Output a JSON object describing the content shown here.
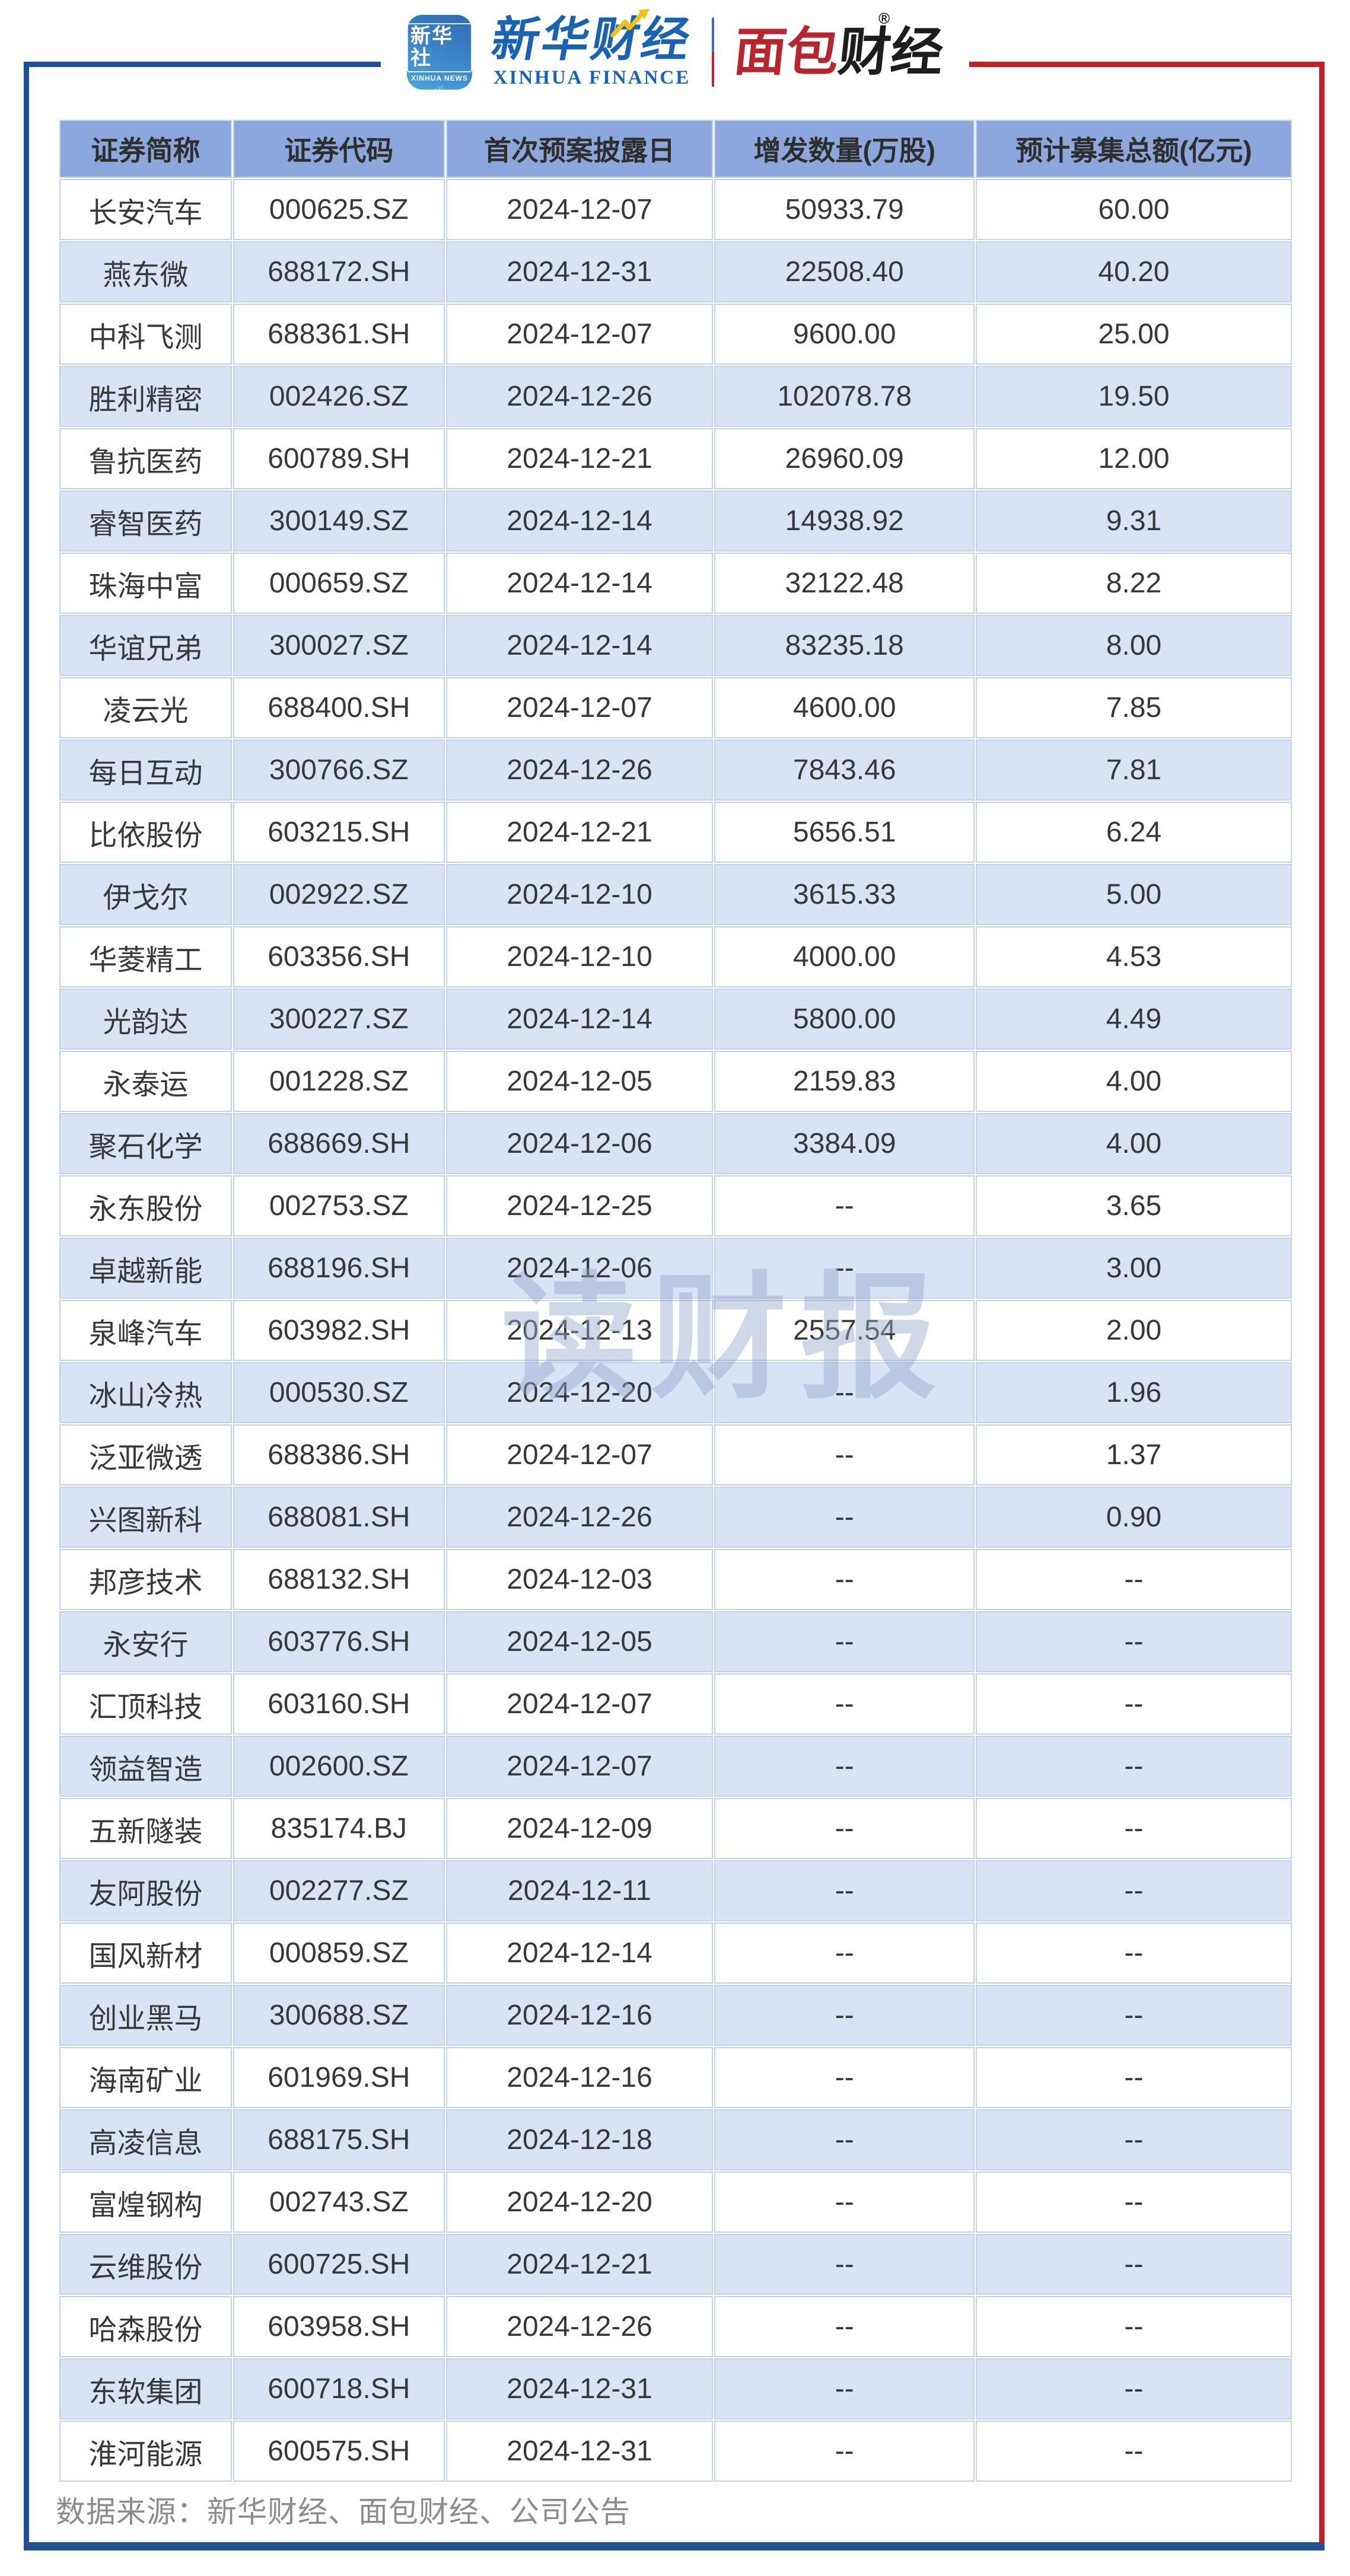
{
  "branding": {
    "app_icon": {
      "line1": "新华社",
      "line2": "XINHUA NEWS"
    },
    "xinhua_finance": {
      "cn": "新华财经",
      "en": "XINHUA FINANCE"
    },
    "mianbao": {
      "cn_red": "面包",
      "cn_black": "财经",
      "reg_mark": "®"
    }
  },
  "watermark": "读财报",
  "footer": {
    "source": "数据来源：新华财经、面包财经、公司公告"
  },
  "colors": {
    "frame_blue": "#1F4E94",
    "frame_red": "#BE2128",
    "bottom_bar": "#21518F",
    "header_bg": "#8BA7DB",
    "band_row_bg": "#D9E3F6",
    "cell_ring": "#C2D2EE",
    "logo_blue": "#1A62B3",
    "logo_red": "#B9252D",
    "arrow_yellow": "#F6BE15",
    "footer_gray": "#8C8C8C"
  },
  "chart_data": {
    "type": "table",
    "columns": [
      "证券简称",
      "证券代码",
      "首次预案披露日",
      "增发数量(万股)",
      "预计募集总额(亿元)"
    ],
    "rows": [
      [
        "长安汽车",
        "000625.SZ",
        "2024-12-07",
        "50933.79",
        "60.00"
      ],
      [
        "燕东微",
        "688172.SH",
        "2024-12-31",
        "22508.40",
        "40.20"
      ],
      [
        "中科飞测",
        "688361.SH",
        "2024-12-07",
        "9600.00",
        "25.00"
      ],
      [
        "胜利精密",
        "002426.SZ",
        "2024-12-26",
        "102078.78",
        "19.50"
      ],
      [
        "鲁抗医药",
        "600789.SH",
        "2024-12-21",
        "26960.09",
        "12.00"
      ],
      [
        "睿智医药",
        "300149.SZ",
        "2024-12-14",
        "14938.92",
        "9.31"
      ],
      [
        "珠海中富",
        "000659.SZ",
        "2024-12-14",
        "32122.48",
        "8.22"
      ],
      [
        "华谊兄弟",
        "300027.SZ",
        "2024-12-14",
        "83235.18",
        "8.00"
      ],
      [
        "凌云光",
        "688400.SH",
        "2024-12-07",
        "4600.00",
        "7.85"
      ],
      [
        "每日互动",
        "300766.SZ",
        "2024-12-26",
        "7843.46",
        "7.81"
      ],
      [
        "比依股份",
        "603215.SH",
        "2024-12-21",
        "5656.51",
        "6.24"
      ],
      [
        "伊戈尔",
        "002922.SZ",
        "2024-12-10",
        "3615.33",
        "5.00"
      ],
      [
        "华菱精工",
        "603356.SH",
        "2024-12-10",
        "4000.00",
        "4.53"
      ],
      [
        "光韵达",
        "300227.SZ",
        "2024-12-14",
        "5800.00",
        "4.49"
      ],
      [
        "永泰运",
        "001228.SZ",
        "2024-12-05",
        "2159.83",
        "4.00"
      ],
      [
        "聚石化学",
        "688669.SH",
        "2024-12-06",
        "3384.09",
        "4.00"
      ],
      [
        "永东股份",
        "002753.SZ",
        "2024-12-25",
        "--",
        "3.65"
      ],
      [
        "卓越新能",
        "688196.SH",
        "2024-12-06",
        "--",
        "3.00"
      ],
      [
        "泉峰汽车",
        "603982.SH",
        "2024-12-13",
        "2557.54",
        "2.00"
      ],
      [
        "冰山冷热",
        "000530.SZ",
        "2024-12-20",
        "--",
        "1.96"
      ],
      [
        "泛亚微透",
        "688386.SH",
        "2024-12-07",
        "--",
        "1.37"
      ],
      [
        "兴图新科",
        "688081.SH",
        "2024-12-26",
        "--",
        "0.90"
      ],
      [
        "邦彦技术",
        "688132.SH",
        "2024-12-03",
        "--",
        "--"
      ],
      [
        "永安行",
        "603776.SH",
        "2024-12-05",
        "--",
        "--"
      ],
      [
        "汇顶科技",
        "603160.SH",
        "2024-12-07",
        "--",
        "--"
      ],
      [
        "领益智造",
        "002600.SZ",
        "2024-12-07",
        "--",
        "--"
      ],
      [
        "五新隧装",
        "835174.BJ",
        "2024-12-09",
        "--",
        "--"
      ],
      [
        "友阿股份",
        "002277.SZ",
        "2024-12-11",
        "--",
        "--"
      ],
      [
        "国风新材",
        "000859.SZ",
        "2024-12-14",
        "--",
        "--"
      ],
      [
        "创业黑马",
        "300688.SZ",
        "2024-12-16",
        "--",
        "--"
      ],
      [
        "海南矿业",
        "601969.SH",
        "2024-12-16",
        "--",
        "--"
      ],
      [
        "高凌信息",
        "688175.SH",
        "2024-12-18",
        "--",
        "--"
      ],
      [
        "富煌钢构",
        "002743.SZ",
        "2024-12-20",
        "--",
        "--"
      ],
      [
        "云维股份",
        "600725.SH",
        "2024-12-21",
        "--",
        "--"
      ],
      [
        "哈森股份",
        "603958.SH",
        "2024-12-26",
        "--",
        "--"
      ],
      [
        "东软集团",
        "600718.SH",
        "2024-12-31",
        "--",
        "--"
      ],
      [
        "淮河能源",
        "600575.SH",
        "2024-12-31",
        "--",
        "--"
      ]
    ]
  }
}
